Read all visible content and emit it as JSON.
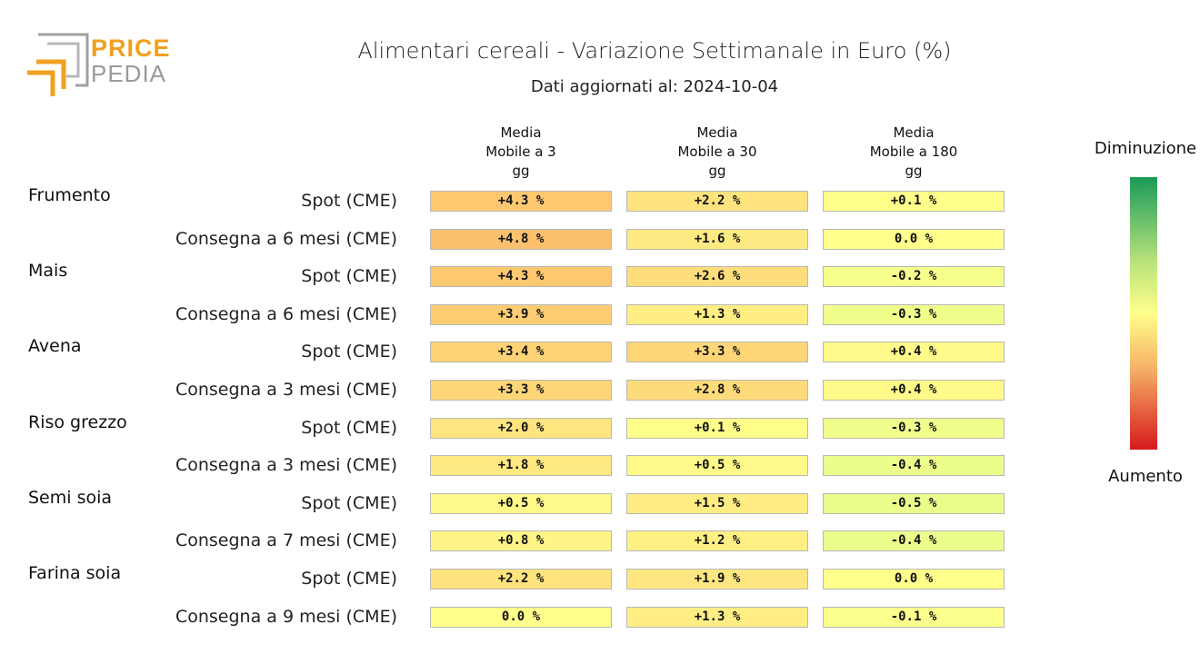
{
  "logo": {
    "line1": "PRICE",
    "line2": "PEDIA"
  },
  "chart_data": {
    "type": "heatmap",
    "title": "Alimentari cereali - Variazione Settimanale in Euro (%)",
    "subtitle": "Dati aggiornati al: 2024-10-04",
    "columns": [
      "Media\nMobile a 3\ngg",
      "Media\nMobile a 30\ngg",
      "Media\nMobile a 180\ngg"
    ],
    "legend": {
      "top": "Diminuzione",
      "bottom": "Aumento",
      "placement": "right"
    },
    "colors": {
      "decrease": "#1a9a5a",
      "mid": "#ffff8a",
      "increase": "#d7191c"
    },
    "groups": [
      {
        "name": "Frumento",
        "rows": [
          {
            "label": "Spot (CME)",
            "values": [
              4.3,
              2.2,
              0.1
            ],
            "texts": [
              "+4.3 %",
              "+2.2 %",
              "+0.1 %"
            ]
          },
          {
            "label": "Consegna a 6 mesi (CME)",
            "values": [
              4.8,
              1.6,
              0.0
            ],
            "texts": [
              "+4.8 %",
              "+1.6 %",
              "0.0 %"
            ]
          }
        ]
      },
      {
        "name": "Mais",
        "rows": [
          {
            "label": "Spot (CME)",
            "values": [
              4.3,
              2.6,
              -0.2
            ],
            "texts": [
              "+4.3 %",
              "+2.6 %",
              "-0.2 %"
            ]
          },
          {
            "label": "Consegna a 6 mesi (CME)",
            "values": [
              3.9,
              1.3,
              -0.3
            ],
            "texts": [
              "+3.9 %",
              "+1.3 %",
              "-0.3 %"
            ]
          }
        ]
      },
      {
        "name": "Avena",
        "rows": [
          {
            "label": "Spot (CME)",
            "values": [
              3.4,
              3.3,
              0.4
            ],
            "texts": [
              "+3.4 %",
              "+3.3 %",
              "+0.4 %"
            ]
          },
          {
            "label": "Consegna a 3 mesi (CME)",
            "values": [
              3.3,
              2.8,
              0.4
            ],
            "texts": [
              "+3.3 %",
              "+2.8 %",
              "+0.4 %"
            ]
          }
        ]
      },
      {
        "name": "Riso grezzo",
        "rows": [
          {
            "label": "Spot (CME)",
            "values": [
              2.0,
              0.1,
              -0.3
            ],
            "texts": [
              "+2.0 %",
              "+0.1 %",
              "-0.3 %"
            ]
          },
          {
            "label": "Consegna a 3 mesi (CME)",
            "values": [
              1.8,
              0.5,
              -0.4
            ],
            "texts": [
              "+1.8 %",
              "+0.5 %",
              "-0.4 %"
            ]
          }
        ]
      },
      {
        "name": "Semi soia",
        "rows": [
          {
            "label": "Spot (CME)",
            "values": [
              0.5,
              1.5,
              -0.5
            ],
            "texts": [
              "+0.5 %",
              "+1.5 %",
              "-0.5 %"
            ]
          },
          {
            "label": "Consegna a 7 mesi (CME)",
            "values": [
              0.8,
              1.2,
              -0.4
            ],
            "texts": [
              "+0.8 %",
              "+1.2 %",
              "-0.4 %"
            ]
          }
        ]
      },
      {
        "name": "Farina soia",
        "rows": [
          {
            "label": "Spot (CME)",
            "values": [
              2.2,
              1.9,
              0.0
            ],
            "texts": [
              "+2.2 %",
              "+1.9 %",
              "0.0 %"
            ]
          },
          {
            "label": "Consegna a 9 mesi (CME)",
            "values": [
              0.0,
              1.3,
              -0.1
            ],
            "texts": [
              "0.0 %",
              "+1.3 %",
              "-0.1 %"
            ]
          }
        ]
      }
    ]
  }
}
